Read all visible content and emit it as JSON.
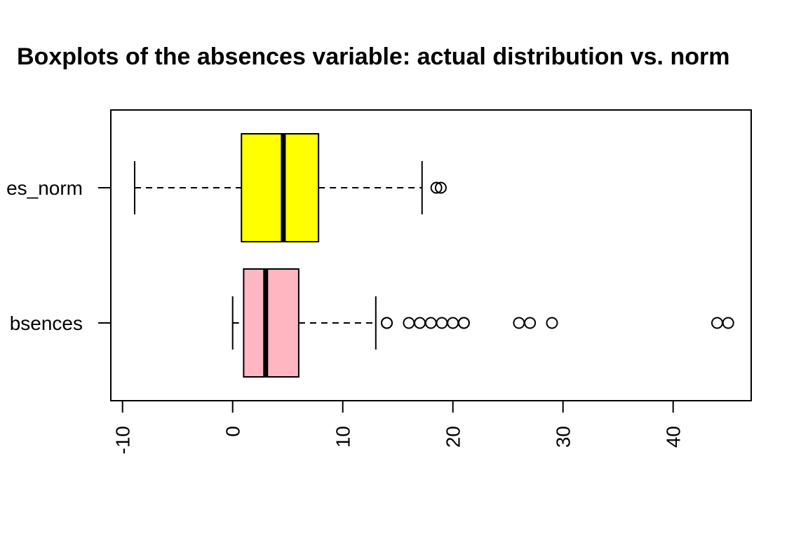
{
  "chart_data": {
    "type": "boxplot",
    "orientation": "horizontal",
    "title": "Boxplots of the absences variable: actual distribution vs. norm",
    "xlim": [
      -11,
      47.5
    ],
    "x_ticks": [
      -10,
      0,
      10,
      20,
      30,
      40
    ],
    "x_tick_labels": [
      "-10",
      "0",
      "10",
      "20",
      "30",
      "40"
    ],
    "x_tick_label_rotation": "vertical",
    "grid": false,
    "series": [
      {
        "name": "absences_norm",
        "label_visible": "es_norm",
        "color": "#ffff00",
        "whisker_low": -8.9,
        "q1": 0.8,
        "median": 4.6,
        "q3": 7.8,
        "whisker_high": 17.2,
        "outliers": [
          18.5,
          18.9
        ]
      },
      {
        "name": "absences",
        "label_visible": "bsences",
        "color": "#ffb6c1",
        "whisker_low": 0,
        "q1": 1,
        "median": 3,
        "q3": 6,
        "whisker_high": 13,
        "outliers": [
          14,
          14,
          16,
          17,
          18,
          19,
          20,
          21,
          21,
          26,
          27,
          29,
          44,
          45
        ]
      }
    ]
  }
}
